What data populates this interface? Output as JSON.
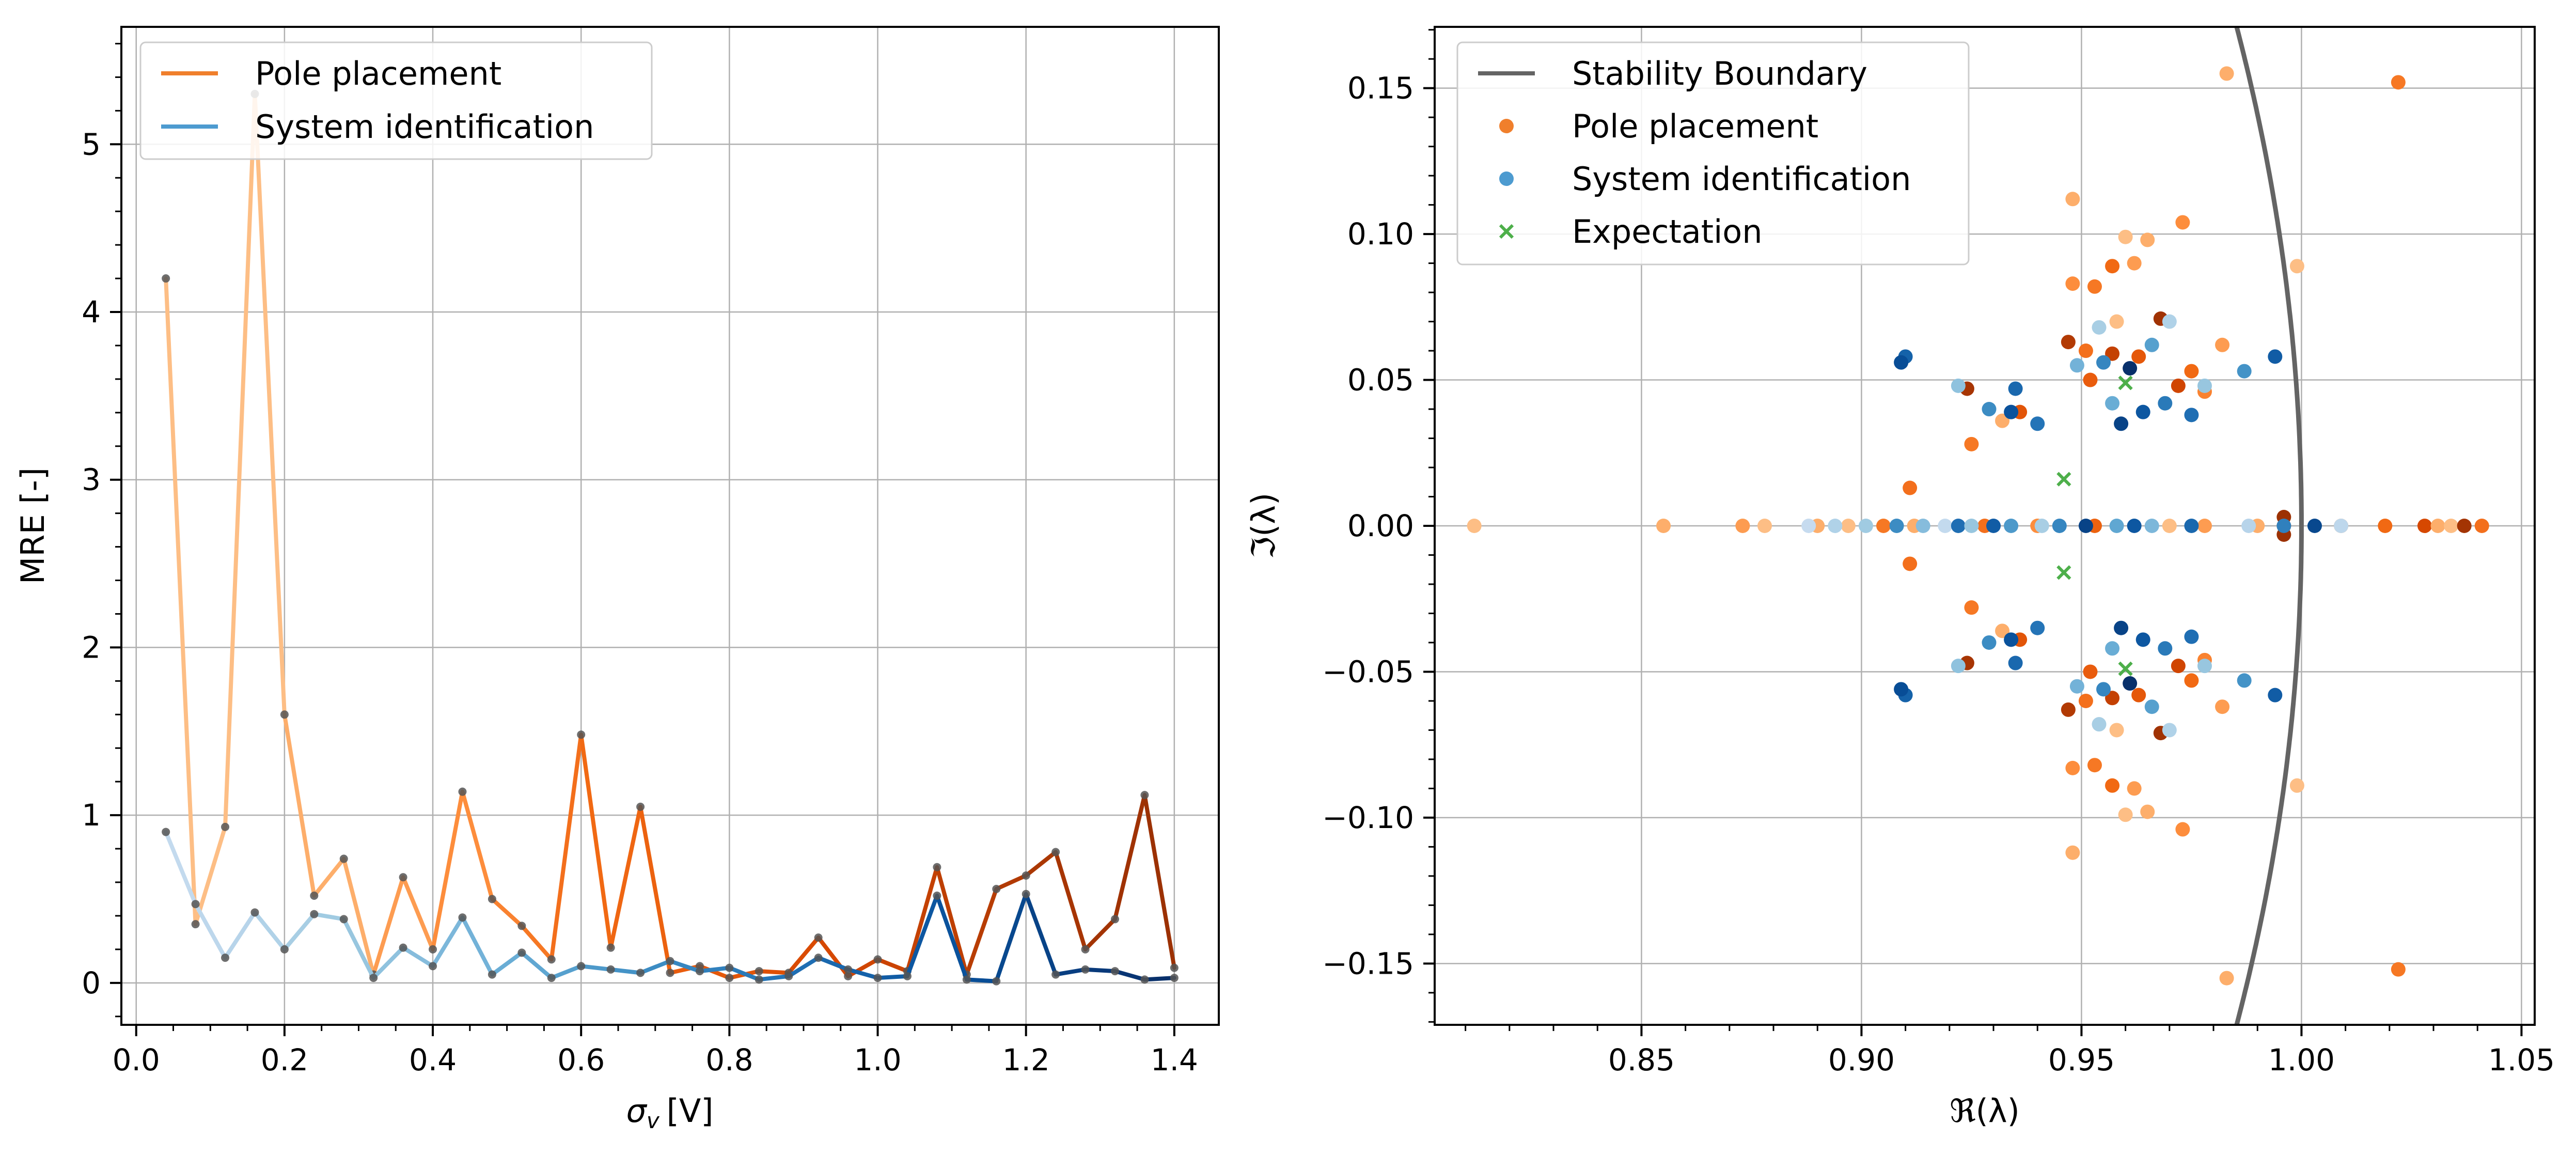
{
  "chart_data": [
    {
      "type": "line",
      "xlabel_main": "σ",
      "xlabel_sub": "v",
      "xlabel_unit": "[V]",
      "ylabel": "MRE [-]",
      "xlim": [
        -0.02,
        1.46
      ],
      "ylim": [
        -0.25,
        5.7
      ],
      "xticks": [
        0.0,
        0.2,
        0.4,
        0.6,
        0.8,
        1.0,
        1.2,
        1.4
      ],
      "xtick_labels": [
        "0.0",
        "0.2",
        "0.4",
        "0.6",
        "0.8",
        "1.0",
        "1.2",
        "1.4"
      ],
      "yticks": [
        0,
        1,
        2,
        3,
        4,
        5
      ],
      "ytick_labels": [
        "0",
        "1",
        "2",
        "3",
        "4",
        "5"
      ],
      "grid": true,
      "legend_position": "upper-left",
      "legend": [
        "Pole placement",
        "System identification"
      ],
      "legend_colors": [
        "#f07f2c",
        "#4d9bd0"
      ],
      "x": [
        0.04,
        0.08,
        0.12,
        0.16,
        0.2,
        0.24,
        0.28,
        0.32,
        0.36,
        0.4,
        0.44,
        0.48,
        0.52,
        0.56,
        0.6,
        0.64,
        0.68,
        0.72,
        0.76,
        0.8,
        0.84,
        0.88,
        0.92,
        0.96,
        1.0,
        1.04,
        1.08,
        1.12,
        1.16,
        1.2,
        1.24,
        1.28,
        1.32,
        1.36,
        1.4
      ],
      "series": [
        {
          "name": "Pole placement",
          "values": [
            4.2,
            0.35,
            0.93,
            5.3,
            1.6,
            0.52,
            0.74,
            0.05,
            0.63,
            0.2,
            1.14,
            0.5,
            0.34,
            0.14,
            1.48,
            0.21,
            1.05,
            0.06,
            0.1,
            0.03,
            0.07,
            0.06,
            0.27,
            0.04,
            0.14,
            0.07,
            0.69,
            0.05,
            0.56,
            0.64,
            0.78,
            0.2,
            0.38,
            1.12,
            0.09
          ],
          "colors": [
            "#fdbe85",
            "#fdbe85",
            "#fdbe85",
            "#fdbe85",
            "#fdbe85",
            "#fdae6b",
            "#fdae6b",
            "#fdae6b",
            "#fd9c51",
            "#fd9c51",
            "#fd8d3c",
            "#fd8d3c",
            "#f98230",
            "#f67824",
            "#f36f1c",
            "#f16913",
            "#ef6612",
            "#ec620f",
            "#e95c0d",
            "#e5580a",
            "#e25508",
            "#de5005",
            "#da4b02",
            "#d64801",
            "#d04501",
            "#cb4301",
            "#c44103",
            "#be3f02",
            "#b83d03",
            "#b23a03",
            "#ab3803",
            "#a73503",
            "#a33403",
            "#a03203",
            "#9c3103"
          ]
        },
        {
          "name": "System identification",
          "values": [
            0.9,
            0.47,
            0.15,
            0.42,
            0.2,
            0.41,
            0.38,
            0.03,
            0.21,
            0.1,
            0.39,
            0.05,
            0.18,
            0.03,
            0.1,
            0.08,
            0.06,
            0.13,
            0.07,
            0.09,
            0.02,
            0.04,
            0.15,
            0.08,
            0.03,
            0.04,
            0.52,
            0.02,
            0.01,
            0.53,
            0.05,
            0.08,
            0.07,
            0.02,
            0.03
          ],
          "colors": [
            "#c6dbef",
            "#c3daee",
            "#bdd7ec",
            "#b7d4ea",
            "#b0d2e8",
            "#a8cee4",
            "#a0cbe2",
            "#98c6df",
            "#8fc2de",
            "#86bcdc",
            "#7cb7da",
            "#73b2d8",
            "#69add5",
            "#60a7d2",
            "#56a0ce",
            "#4d99ca",
            "#4493c7",
            "#3c8cc3",
            "#3686c0",
            "#3080bd",
            "#2a7ab9",
            "#2474b7",
            "#1f6eb3",
            "#1a68ae",
            "#1562a9",
            "#115ca5",
            "#0d57a1",
            "#0a529c",
            "#084d96",
            "#08488e",
            "#084387",
            "#083e81",
            "#08397a",
            "#083574",
            "#08306b"
          ]
        }
      ]
    },
    {
      "type": "scatter",
      "xlabel": "ℜ(λ)",
      "ylabel": "ℑ(λ)",
      "xlim": [
        0.803,
        1.053
      ],
      "ylim": [
        -0.171,
        0.171
      ],
      "xticks": [
        0.85,
        0.9,
        0.95,
        1.0,
        1.05
      ],
      "xtick_labels": [
        "0.85",
        "0.90",
        "0.95",
        "1.00",
        "1.05"
      ],
      "yticks": [
        -0.15,
        -0.1,
        -0.05,
        0.0,
        0.05,
        0.1,
        0.15
      ],
      "ytick_labels": [
        "−0.15",
        "−0.10",
        "−0.05",
        "0.00",
        "0.05",
        "0.10",
        "0.15"
      ],
      "grid": true,
      "legend_position": "upper-left",
      "legend": [
        "Stability Boundary",
        "Pole placement",
        "System identification",
        "Expectation"
      ],
      "legend_colors": [
        "#646464",
        "#f07f2c",
        "#4d9bd0",
        "#4daf4a"
      ],
      "boundary": "unit-circle",
      "boundary_color": "#646464",
      "series": [
        {
          "name": "Pole placement",
          "points": [
            [
              0.812,
              0.0
            ],
            [
              0.855,
              0.0
            ],
            [
              0.873,
              0.0
            ],
            [
              0.878,
              0.0
            ],
            [
              0.89,
              0.0
            ],
            [
              0.897,
              0.0
            ],
            [
              0.905,
              0.0
            ],
            [
              0.912,
              0.0
            ],
            [
              0.928,
              0.0
            ],
            [
              0.94,
              0.0
            ],
            [
              0.953,
              0.0
            ],
            [
              0.97,
              0.0
            ],
            [
              0.978,
              0.0
            ],
            [
              0.99,
              0.0
            ],
            [
              0.996,
              0.0
            ],
            [
              1.009,
              0.0
            ],
            [
              1.019,
              0.0
            ],
            [
              1.028,
              0.0
            ],
            [
              1.031,
              0.0
            ],
            [
              1.034,
              0.0
            ],
            [
              1.037,
              0.0
            ],
            [
              1.041,
              0.0
            ],
            [
              0.983,
              0.155
            ],
            [
              0.983,
              -0.155
            ],
            [
              1.022,
              0.152
            ],
            [
              1.022,
              -0.152
            ],
            [
              0.948,
              0.112
            ],
            [
              0.948,
              -0.112
            ],
            [
              0.973,
              0.104
            ],
            [
              0.973,
              -0.104
            ],
            [
              0.96,
              0.099
            ],
            [
              0.96,
              -0.099
            ],
            [
              0.965,
              0.098
            ],
            [
              0.965,
              -0.098
            ],
            [
              0.999,
              0.089
            ],
            [
              0.999,
              -0.089
            ],
            [
              0.957,
              0.089
            ],
            [
              0.957,
              -0.089
            ],
            [
              0.962,
              0.09
            ],
            [
              0.962,
              -0.09
            ],
            [
              0.953,
              0.082
            ],
            [
              0.953,
              -0.082
            ],
            [
              0.948,
              0.083
            ],
            [
              0.948,
              -0.083
            ],
            [
              0.968,
              0.071
            ],
            [
              0.968,
              -0.071
            ],
            [
              0.958,
              0.07
            ],
            [
              0.958,
              -0.07
            ],
            [
              0.947,
              0.063
            ],
            [
              0.947,
              -0.063
            ],
            [
              0.951,
              0.06
            ],
            [
              0.951,
              -0.06
            ],
            [
              0.957,
              0.059
            ],
            [
              0.957,
              -0.059
            ],
            [
              0.963,
              0.058
            ],
            [
              0.963,
              -0.058
            ],
            [
              0.975,
              0.053
            ],
            [
              0.975,
              -0.053
            ],
            [
              0.982,
              0.062
            ],
            [
              0.982,
              -0.062
            ],
            [
              0.972,
              0.048
            ],
            [
              0.972,
              -0.048
            ],
            [
              0.978,
              0.046
            ],
            [
              0.978,
              -0.046
            ],
            [
              0.924,
              0.047
            ],
            [
              0.924,
              -0.047
            ],
            [
              0.925,
              0.028
            ],
            [
              0.925,
              -0.028
            ],
            [
              0.932,
              0.036
            ],
            [
              0.932,
              -0.036
            ],
            [
              0.936,
              0.039
            ],
            [
              0.936,
              -0.039
            ],
            [
              0.911,
              0.013
            ],
            [
              0.911,
              -0.013
            ],
            [
              0.996,
              0.003
            ],
            [
              0.996,
              -0.003
            ],
            [
              0.952,
              0.05
            ],
            [
              0.952,
              -0.05
            ]
          ],
          "colors": [
            "#fdbe85",
            "#fdae6b",
            "#fd9c51",
            "#fdbe85",
            "#fdae6b",
            "#fdbe85",
            "#f67824",
            "#fdae6b",
            "#f36f1c",
            "#fd8d3c",
            "#ec620f",
            "#fdbe85",
            "#fd9c51",
            "#fdae6b",
            "#e95c0d",
            "#fd8d3c",
            "#f16913",
            "#d64801",
            "#fdae6b",
            "#fdbe85",
            "#a33403",
            "#f36f1c",
            "#fdae6b",
            "#fdae6b",
            "#f67824",
            "#f67824",
            "#fdae6b",
            "#fdae6b",
            "#fd8d3c",
            "#fd8d3c",
            "#fdbe85",
            "#fdbe85",
            "#fdae6b",
            "#fdae6b",
            "#fdbe85",
            "#fdbe85",
            "#f16913",
            "#f16913",
            "#fd9c51",
            "#fd9c51",
            "#f67824",
            "#f67824",
            "#fd8d3c",
            "#fd8d3c",
            "#a03203",
            "#a03203",
            "#fdbe85",
            "#fdbe85",
            "#b23a03",
            "#b23a03",
            "#f36f1c",
            "#f36f1c",
            "#c44103",
            "#c44103",
            "#e5580a",
            "#e5580a",
            "#f16913",
            "#f16913",
            "#fd9c51",
            "#fd9c51",
            "#d04501",
            "#d04501",
            "#f98230",
            "#f98230",
            "#a73503",
            "#a73503",
            "#f67824",
            "#f67824",
            "#fdae6b",
            "#fdae6b",
            "#e25508",
            "#e25508",
            "#f36f1c",
            "#f36f1c",
            "#9c3103",
            "#9c3103",
            "#e95c0d",
            "#e95c0d"
          ]
        },
        {
          "name": "System identification",
          "points": [
            [
              0.888,
              0.0
            ],
            [
              0.894,
              0.0
            ],
            [
              0.901,
              0.0
            ],
            [
              0.908,
              0.0
            ],
            [
              0.914,
              0.0
            ],
            [
              0.919,
              0.0
            ],
            [
              0.922,
              0.0
            ],
            [
              0.925,
              0.0
            ],
            [
              0.93,
              0.0
            ],
            [
              0.934,
              0.0
            ],
            [
              0.941,
              0.0
            ],
            [
              0.945,
              0.0
            ],
            [
              0.951,
              0.0
            ],
            [
              0.958,
              0.0
            ],
            [
              0.962,
              0.0
            ],
            [
              0.966,
              0.0
            ],
            [
              0.975,
              0.0
            ],
            [
              0.988,
              0.0
            ],
            [
              0.996,
              0.0
            ],
            [
              1.003,
              0.0
            ],
            [
              1.009,
              0.0
            ],
            [
              0.91,
              0.058
            ],
            [
              0.91,
              -0.058
            ],
            [
              0.909,
              0.056
            ],
            [
              0.909,
              -0.056
            ],
            [
              0.929,
              0.04
            ],
            [
              0.929,
              -0.04
            ],
            [
              0.934,
              0.039
            ],
            [
              0.934,
              -0.039
            ],
            [
              0.94,
              0.035
            ],
            [
              0.94,
              -0.035
            ],
            [
              0.922,
              0.048
            ],
            [
              0.922,
              -0.048
            ],
            [
              0.935,
              0.047
            ],
            [
              0.935,
              -0.047
            ],
            [
              0.949,
              0.055
            ],
            [
              0.949,
              -0.055
            ],
            [
              0.955,
              0.056
            ],
            [
              0.955,
              -0.056
            ],
            [
              0.961,
              0.054
            ],
            [
              0.961,
              -0.054
            ],
            [
              0.97,
              0.07
            ],
            [
              0.97,
              -0.07
            ],
            [
              0.966,
              0.062
            ],
            [
              0.966,
              -0.062
            ],
            [
              0.994,
              0.058
            ],
            [
              0.994,
              -0.058
            ],
            [
              0.957,
              0.042
            ],
            [
              0.957,
              -0.042
            ],
            [
              0.969,
              0.042
            ],
            [
              0.969,
              -0.042
            ],
            [
              0.975,
              0.038
            ],
            [
              0.975,
              -0.038
            ],
            [
              0.987,
              0.053
            ],
            [
              0.987,
              -0.053
            ],
            [
              0.978,
              0.048
            ],
            [
              0.978,
              -0.048
            ],
            [
              0.954,
              0.068
            ],
            [
              0.954,
              -0.068
            ],
            [
              0.964,
              0.039
            ],
            [
              0.964,
              -0.039
            ],
            [
              0.959,
              0.035
            ],
            [
              0.959,
              -0.035
            ]
          ],
          "colors": [
            "#c6dbef",
            "#b0d2e8",
            "#a0cbe2",
            "#3c8cc3",
            "#86bcdc",
            "#c3daee",
            "#1f6eb3",
            "#98c6df",
            "#115ca5",
            "#4d99ca",
            "#a8cee4",
            "#3686c0",
            "#084387",
            "#60a7d2",
            "#0d57a1",
            "#7cb7da",
            "#1a68ae",
            "#b7d4ea",
            "#3080bd",
            "#08488e",
            "#bdd7ec",
            "#1562a9",
            "#1562a9",
            "#084d96",
            "#084d96",
            "#3c8cc3",
            "#3c8cc3",
            "#0a529c",
            "#0a529c",
            "#2474b7",
            "#2474b7",
            "#8fc2de",
            "#8fc2de",
            "#1a68ae",
            "#1a68ae",
            "#73b2d8",
            "#73b2d8",
            "#3686c0",
            "#3686c0",
            "#08306b",
            "#08306b",
            "#b0d2e8",
            "#b0d2e8",
            "#56a0ce",
            "#56a0ce",
            "#115ca5",
            "#115ca5",
            "#69add5",
            "#69add5",
            "#2a7ab9",
            "#2a7ab9",
            "#1f6eb3",
            "#1f6eb3",
            "#4493c7",
            "#4493c7",
            "#98c6df",
            "#98c6df",
            "#a8cee4",
            "#a8cee4",
            "#0d57a1",
            "#0d57a1",
            "#084387",
            "#084387"
          ]
        },
        {
          "name": "Expectation",
          "points": [
            [
              0.946,
              0.016
            ],
            [
              0.946,
              -0.016
            ],
            [
              0.96,
              0.049
            ],
            [
              0.96,
              -0.049
            ]
          ],
          "color": "#4daf4a"
        }
      ]
    }
  ]
}
